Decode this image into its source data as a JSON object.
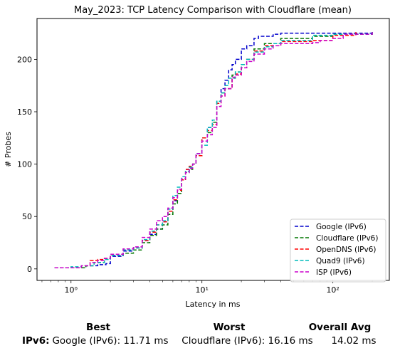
{
  "chart_data": {
    "type": "line",
    "title": "May_2023: TCP Latency Comparison with Cloudflare (mean)",
    "xlabel": "Latency in ms",
    "ylabel": "# Probes",
    "xscale": "log",
    "xlim": [
      0.55,
      270
    ],
    "ylim": [
      -11,
      239
    ],
    "xticks": [
      1,
      10,
      100
    ],
    "xtick_labels": [
      "10⁰",
      "10¹",
      "10²"
    ],
    "yticks": [
      0,
      50,
      100,
      150,
      200
    ],
    "grid": false,
    "legend_position": "lower right",
    "series": [
      {
        "name": "Google (IPv6)",
        "color": "#0000cc",
        "points": [
          [
            0.75,
            1
          ],
          [
            1.0,
            1
          ],
          [
            1.3,
            3
          ],
          [
            1.6,
            4
          ],
          [
            1.85,
            5
          ],
          [
            2.0,
            12
          ],
          [
            2.5,
            17
          ],
          [
            3.0,
            20
          ],
          [
            3.5,
            27
          ],
          [
            4.0,
            33
          ],
          [
            4.5,
            38
          ],
          [
            5.0,
            45
          ],
          [
            5.5,
            55
          ],
          [
            6.0,
            65
          ],
          [
            6.5,
            72
          ],
          [
            7.0,
            85
          ],
          [
            7.5,
            95
          ],
          [
            8.0,
            97
          ],
          [
            8.5,
            100
          ],
          [
            9.0,
            110
          ],
          [
            10.0,
            125
          ],
          [
            11.0,
            135
          ],
          [
            12.0,
            140
          ],
          [
            13.0,
            160
          ],
          [
            14.0,
            172
          ],
          [
            15.0,
            180
          ],
          [
            16.0,
            190
          ],
          [
            17.0,
            195
          ],
          [
            18.0,
            200
          ],
          [
            20.0,
            210
          ],
          [
            22.0,
            213
          ],
          [
            25.0,
            220
          ],
          [
            27.0,
            222
          ],
          [
            35.0,
            224
          ],
          [
            40.0,
            225
          ],
          [
            200,
            227
          ]
        ]
      },
      {
        "name": "Cloudflare (IPv6)",
        "color": "#007700",
        "points": [
          [
            0.75,
            1
          ],
          [
            1.0,
            1
          ],
          [
            1.3,
            3
          ],
          [
            1.5,
            6
          ],
          [
            1.8,
            10
          ],
          [
            2.0,
            13
          ],
          [
            2.5,
            15
          ],
          [
            3.0,
            18
          ],
          [
            3.5,
            25
          ],
          [
            4.0,
            32
          ],
          [
            4.5,
            38
          ],
          [
            5.0,
            42
          ],
          [
            5.5,
            52
          ],
          [
            6.0,
            62
          ],
          [
            6.5,
            72
          ],
          [
            7.0,
            85
          ],
          [
            7.5,
            92
          ],
          [
            8.0,
            95
          ],
          [
            8.5,
            100
          ],
          [
            9.0,
            108
          ],
          [
            10.0,
            125
          ],
          [
            11.0,
            130
          ],
          [
            12.0,
            140
          ],
          [
            13.0,
            160
          ],
          [
            14.0,
            168
          ],
          [
            15.0,
            172
          ],
          [
            17.0,
            185
          ],
          [
            18.0,
            188
          ],
          [
            20.0,
            195
          ],
          [
            22.0,
            200
          ],
          [
            25.0,
            210
          ],
          [
            30.0,
            215
          ],
          [
            40.0,
            220
          ],
          [
            70.0,
            222
          ],
          [
            100,
            224
          ],
          [
            200,
            227
          ]
        ]
      },
      {
        "name": "OpenDNS (IPv6)",
        "color": "#ff0000",
        "points": [
          [
            0.75,
            1
          ],
          [
            1.0,
            1
          ],
          [
            1.2,
            3
          ],
          [
            1.4,
            8
          ],
          [
            1.6,
            9
          ],
          [
            1.8,
            10
          ],
          [
            2.0,
            13
          ],
          [
            2.5,
            18
          ],
          [
            3.0,
            20
          ],
          [
            3.5,
            27
          ],
          [
            4.0,
            35
          ],
          [
            4.5,
            42
          ],
          [
            5.0,
            45
          ],
          [
            5.5,
            55
          ],
          [
            6.0,
            66
          ],
          [
            6.5,
            75
          ],
          [
            7.0,
            85
          ],
          [
            7.5,
            95
          ],
          [
            8.0,
            98
          ],
          [
            8.5,
            100
          ],
          [
            9.0,
            108
          ],
          [
            10.0,
            125
          ],
          [
            11.0,
            132
          ],
          [
            12.0,
            138
          ],
          [
            13.0,
            158
          ],
          [
            14.0,
            165
          ],
          [
            15.0,
            172
          ],
          [
            17.0,
            182
          ],
          [
            18.0,
            186
          ],
          [
            20.0,
            192
          ],
          [
            22.0,
            200
          ],
          [
            25.0,
            208
          ],
          [
            30.0,
            213
          ],
          [
            40.0,
            217
          ],
          [
            70.0,
            218
          ],
          [
            100,
            223
          ],
          [
            150,
            226
          ]
        ]
      },
      {
        "name": "Quad9 (IPv6)",
        "color": "#00bbbb",
        "points": [
          [
            0.75,
            1
          ],
          [
            1.0,
            2
          ],
          [
            1.2,
            3
          ],
          [
            1.5,
            6
          ],
          [
            1.8,
            9
          ],
          [
            2.0,
            13
          ],
          [
            2.5,
            18
          ],
          [
            3.0,
            20
          ],
          [
            3.5,
            28
          ],
          [
            4.0,
            36
          ],
          [
            4.5,
            42
          ],
          [
            5.0,
            46
          ],
          [
            5.5,
            57
          ],
          [
            6.0,
            70
          ],
          [
            6.5,
            78
          ],
          [
            7.0,
            88
          ],
          [
            7.5,
            93
          ],
          [
            8.0,
            97
          ],
          [
            8.5,
            100
          ],
          [
            9.0,
            110
          ],
          [
            10.0,
            118
          ],
          [
            11.0,
            135
          ],
          [
            12.0,
            142
          ],
          [
            13.0,
            160
          ],
          [
            14.0,
            168
          ],
          [
            15.0,
            175
          ],
          [
            16.0,
            182
          ],
          [
            18.0,
            188
          ],
          [
            20.0,
            195
          ],
          [
            22.0,
            200
          ],
          [
            25.0,
            207
          ],
          [
            30.0,
            212
          ],
          [
            35.0,
            215
          ],
          [
            40.0,
            218
          ],
          [
            70.0,
            223
          ],
          [
            100,
            224
          ],
          [
            200,
            227
          ]
        ]
      },
      {
        "name": "ISP (IPv6)",
        "color": "#cc00cc",
        "points": [
          [
            0.75,
            1
          ],
          [
            1.0,
            1
          ],
          [
            1.2,
            3
          ],
          [
            1.4,
            6
          ],
          [
            1.6,
            8
          ],
          [
            1.8,
            10
          ],
          [
            2.0,
            14
          ],
          [
            2.5,
            19
          ],
          [
            3.0,
            21
          ],
          [
            3.5,
            30
          ],
          [
            4.0,
            38
          ],
          [
            4.5,
            46
          ],
          [
            5.0,
            50
          ],
          [
            5.5,
            58
          ],
          [
            6.0,
            68
          ],
          [
            6.5,
            76
          ],
          [
            7.0,
            86
          ],
          [
            7.5,
            92
          ],
          [
            8.0,
            96
          ],
          [
            8.5,
            100
          ],
          [
            9.0,
            110
          ],
          [
            10.0,
            122
          ],
          [
            11.0,
            128
          ],
          [
            12.0,
            135
          ],
          [
            13.0,
            155
          ],
          [
            14.0,
            165
          ],
          [
            15.0,
            172
          ],
          [
            17.0,
            183
          ],
          [
            18.0,
            185
          ],
          [
            20.0,
            192
          ],
          [
            22.0,
            198
          ],
          [
            25.0,
            205
          ],
          [
            30.0,
            210
          ],
          [
            35.0,
            213
          ],
          [
            40.0,
            215
          ],
          [
            70.0,
            216
          ],
          [
            80.0,
            218
          ],
          [
            100,
            220
          ],
          [
            120,
            224
          ],
          [
            200,
            226
          ]
        ]
      }
    ]
  },
  "summary": {
    "best_header": "Best",
    "worst_header": "Worst",
    "avg_header": "Overall Avg",
    "row_label": "IPv6:",
    "best_value": "Google (IPv6): 11.71 ms",
    "worst_value": "Cloudflare (IPv6): 16.16 ms",
    "avg_value": "14.02 ms"
  }
}
